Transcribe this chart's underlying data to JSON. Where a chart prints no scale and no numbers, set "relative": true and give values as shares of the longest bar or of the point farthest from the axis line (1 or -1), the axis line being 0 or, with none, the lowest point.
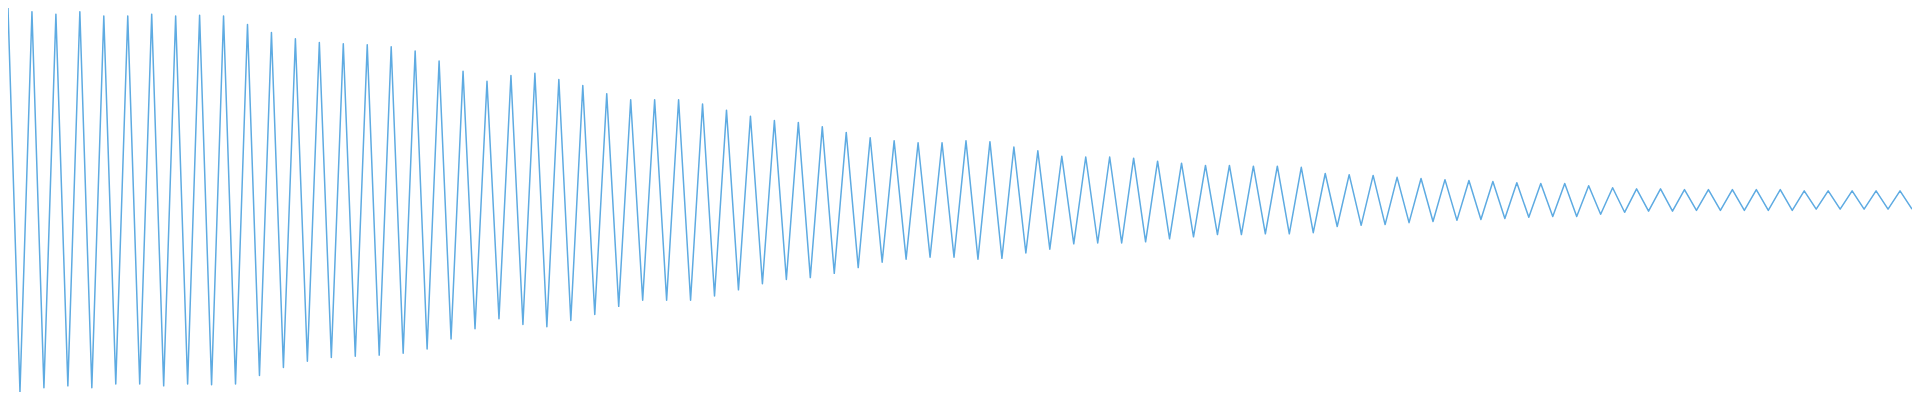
{
  "chart_data": {
    "type": "line",
    "relative": true,
    "color": "#5eabe2",
    "marker": "none",
    "categories": [
      null,
      null,
      null,
      null,
      null,
      null,
      null,
      null,
      null,
      null,
      null,
      null,
      null,
      null,
      null,
      null,
      null,
      null,
      null,
      null,
      null,
      null,
      null,
      null,
      null,
      null,
      null,
      null,
      null,
      null,
      null,
      null,
      null,
      null,
      null,
      null,
      null,
      null,
      null,
      null,
      null,
      null,
      null,
      null,
      null,
      null,
      null,
      null,
      null,
      null,
      null,
      null,
      null,
      null,
      null,
      null,
      null,
      null,
      null,
      null,
      null,
      null,
      null,
      null,
      null,
      null,
      null,
      null,
      null,
      null,
      null,
      null,
      null,
      null,
      null,
      null,
      null,
      null,
      null,
      null,
      null,
      null,
      null,
      null,
      null,
      null,
      null,
      null,
      null,
      null,
      null,
      null,
      null,
      null,
      null,
      null,
      null,
      null,
      null,
      null,
      null,
      null,
      null,
      null,
      null,
      null,
      null,
      null,
      null,
      null,
      null,
      null,
      null,
      null,
      null,
      null,
      null,
      null,
      null,
      null,
      null,
      null,
      null,
      null,
      null,
      null,
      null,
      null,
      null,
      null,
      null,
      null,
      null,
      null,
      null,
      null,
      null,
      null,
      null,
      null,
      null,
      null,
      null,
      null,
      null,
      null,
      null,
      null,
      null,
      null,
      null,
      null,
      null,
      null,
      null,
      null,
      null,
      null,
      null,
      null
    ],
    "values": [
      1,
      0,
      0.99,
      0.011,
      0.984,
      0.016,
      0.99,
      0.011,
      0.979,
      0.021,
      0.979,
      0.021,
      0.984,
      0.016,
      0.979,
      0.021,
      0.981,
      0.019,
      0.979,
      0.021,
      0.957,
      0.043,
      0.936,
      0.064,
      0.92,
      0.08,
      0.91,
      0.09,
      0.907,
      0.093,
      0.904,
      0.096,
      0.899,
      0.101,
      0.888,
      0.112,
      0.862,
      0.138,
      0.835,
      0.165,
      0.809,
      0.191,
      0.824,
      0.176,
      0.83,
      0.17,
      0.814,
      0.186,
      0.798,
      0.202,
      0.777,
      0.223,
      0.761,
      0.239,
      0.761,
      0.239,
      0.761,
      0.239,
      0.75,
      0.25,
      0.734,
      0.266,
      0.718,
      0.282,
      0.707,
      0.293,
      0.702,
      0.298,
      0.691,
      0.309,
      0.676,
      0.324,
      0.662,
      0.338,
      0.654,
      0.346,
      0.649,
      0.351,
      0.649,
      0.351,
      0.654,
      0.346,
      0.652,
      0.348,
      0.638,
      0.362,
      0.628,
      0.372,
      0.614,
      0.386,
      0.612,
      0.388,
      0.612,
      0.388,
      0.609,
      0.391,
      0.601,
      0.399,
      0.596,
      0.404,
      0.59,
      0.41,
      0.59,
      0.41,
      0.588,
      0.412,
      0.588,
      0.412,
      0.585,
      0.415,
      0.569,
      0.431,
      0.566,
      0.434,
      0.564,
      0.436,
      0.559,
      0.441,
      0.556,
      0.444,
      0.553,
      0.447,
      0.551,
      0.449,
      0.548,
      0.452,
      0.545,
      0.455,
      0.543,
      0.457,
      0.543,
      0.457,
      0.537,
      0.463,
      0.532,
      0.468,
      0.529,
      0.471,
      0.529,
      0.471,
      0.527,
      0.473,
      0.527,
      0.473,
      0.527,
      0.473,
      0.527,
      0.473,
      0.527,
      0.473,
      0.524,
      0.476,
      0.524,
      0.476,
      0.524,
      0.476,
      0.524,
      0.476,
      0.524,
      0.476
    ]
  }
}
